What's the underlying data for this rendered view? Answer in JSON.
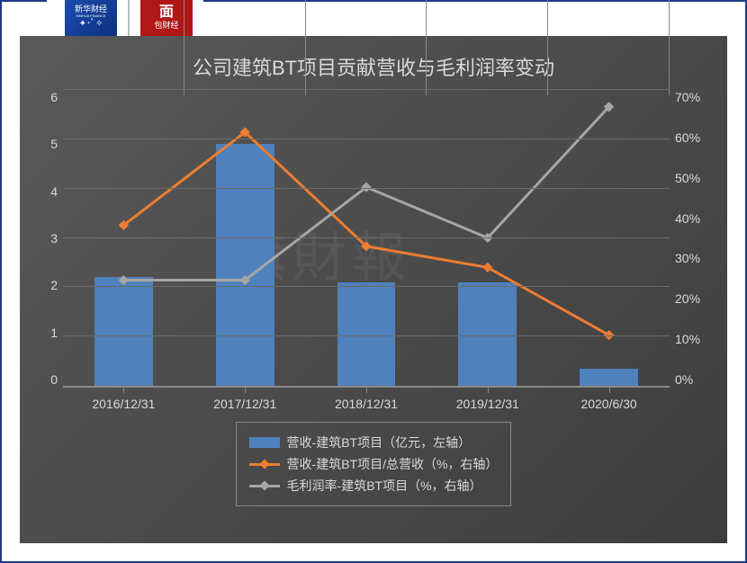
{
  "logos": {
    "left": {
      "line1": "新华财经",
      "line2": "XINHUA FINANCE",
      "bg": "#1e50b3"
    },
    "right": {
      "line1": "面",
      "line2": "包财经",
      "bg": "#b01818"
    }
  },
  "chart": {
    "title": "公司建筑BT项目贡献营收与毛利润率变动",
    "background_gradient": [
      "#595959",
      "#3d3d3d"
    ],
    "watermark": "旗財報",
    "x_categories": [
      "2016/12/31",
      "2017/12/31",
      "2018/12/31",
      "2019/12/31",
      "2020/6/30"
    ],
    "left_axis": {
      "min": 0,
      "max": 6,
      "step": 1,
      "ticks": [
        "0",
        "1",
        "2",
        "3",
        "4",
        "5",
        "6"
      ],
      "color": "#d9d9d9"
    },
    "right_axis": {
      "min": 0,
      "max": 70,
      "step": 10,
      "ticks": [
        "0%",
        "10%",
        "20%",
        "30%",
        "40%",
        "50%",
        "60%",
        "70%"
      ],
      "color": "#d9d9d9"
    },
    "series": {
      "bars": {
        "name": "营收-建筑BT项目（亿元，左轴）",
        "color": "#4f81bd",
        "axis": "left",
        "values": [
          2.2,
          4.9,
          2.1,
          2.1,
          0.35
        ]
      },
      "line1": {
        "name": "营收-建筑BT项目/总营收（%，右轴）",
        "color": "#ed7d31",
        "marker": "diamond",
        "line_width": 3,
        "axis": "right",
        "values": [
          38,
          60,
          33,
          28,
          12
        ]
      },
      "line2": {
        "name": "毛利润率-建筑BT项目（%，右轴）",
        "color": "#a6a6a6",
        "marker": "diamond",
        "line_width": 3,
        "axis": "right",
        "values": [
          25,
          25,
          47,
          35,
          66
        ]
      }
    },
    "grid_color": "#6a6a6a",
    "axis_font_size": 14,
    "title_font_size": 22,
    "title_color": "#d9d9d9"
  }
}
